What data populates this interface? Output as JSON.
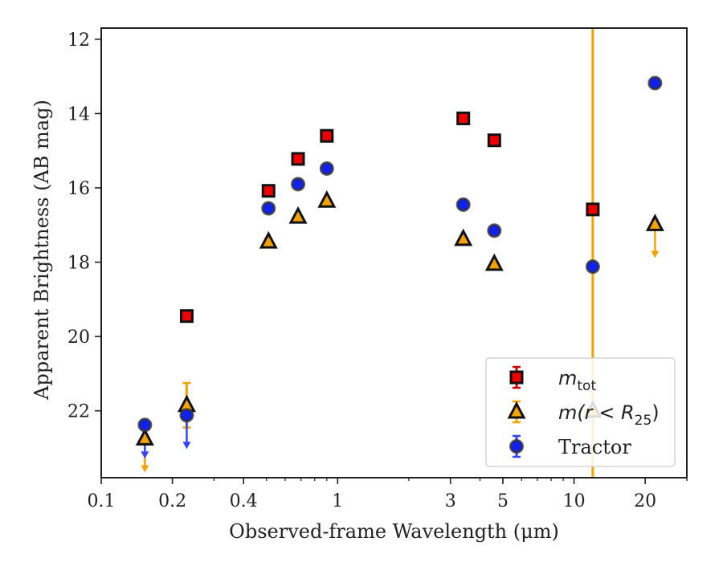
{
  "chart_data": {
    "type": "scatter",
    "xlabel": "Observed-frame Wavelength (μm)",
    "ylabel": "Apparent Brightness (AB mag)",
    "xscale": "log",
    "xlim": [
      0.1,
      30
    ],
    "ylim": [
      23.8,
      11.7
    ],
    "y_inverted": true,
    "xticks": [
      {
        "value": 0.1,
        "label": "0.1"
      },
      {
        "value": 0.2,
        "label": "0.2"
      },
      {
        "value": 0.4,
        "label": "0.4"
      },
      {
        "value": 1,
        "label": "1"
      },
      {
        "value": 3,
        "label": "3"
      },
      {
        "value": 5,
        "label": "5"
      },
      {
        "value": 10,
        "label": "10"
      },
      {
        "value": 20,
        "label": "20"
      }
    ],
    "yticks": [
      {
        "value": 12,
        "label": "12"
      },
      {
        "value": 14,
        "label": "14"
      },
      {
        "value": 16,
        "label": "16"
      },
      {
        "value": 18,
        "label": "18"
      },
      {
        "value": 20,
        "label": "20"
      },
      {
        "value": 22,
        "label": "22"
      }
    ],
    "grid": false,
    "legend_placement": "lower-right",
    "series": [
      {
        "name": "m_tot",
        "legend_label": {
          "main": "m",
          "sub": "tot",
          "suffix": ""
        },
        "marker": "square",
        "color": "#ee0000",
        "error_color": "#cc0000",
        "points": [
          {
            "x": 0.23,
            "y": 19.45
          },
          {
            "x": 0.51,
            "y": 16.08
          },
          {
            "x": 0.68,
            "y": 15.22
          },
          {
            "x": 0.9,
            "y": 14.6
          },
          {
            "x": 3.4,
            "y": 14.13
          },
          {
            "x": 4.6,
            "y": 14.72
          },
          {
            "x": 12.0,
            "y": 16.58
          }
        ]
      },
      {
        "name": "m(r < R25)",
        "legend_label": {
          "main": "m(r < R",
          "sub": "25",
          "suffix": ")"
        },
        "marker": "triangle",
        "color": "#f5a300",
        "error_color": "#f5a300",
        "points": [
          {
            "x": 0.153,
            "y": 22.75,
            "upper_limit": true
          },
          {
            "x": 0.23,
            "y": 21.85,
            "yerr": [
              0.6,
              0.6
            ]
          },
          {
            "x": 0.51,
            "y": 17.45
          },
          {
            "x": 0.68,
            "y": 16.78
          },
          {
            "x": 0.9,
            "y": 16.35
          },
          {
            "x": 3.4,
            "y": 17.38
          },
          {
            "x": 4.6,
            "y": 18.05
          },
          {
            "x": 12.0,
            "y": 22.0,
            "yerr": [
              100,
              100
            ]
          },
          {
            "x": 22.0,
            "y": 16.98,
            "upper_limit": true
          }
        ]
      },
      {
        "name": "Tractor",
        "legend_label": {
          "main": "Tractor",
          "sub": "",
          "suffix": ""
        },
        "marker": "circle",
        "color": "#1020ee",
        "error_color": "#3344ff",
        "points": [
          {
            "x": 0.153,
            "y": 22.38,
            "upper_limit": true
          },
          {
            "x": 0.23,
            "y": 22.12,
            "upper_limit": true
          },
          {
            "x": 0.51,
            "y": 16.55
          },
          {
            "x": 0.68,
            "y": 15.9
          },
          {
            "x": 0.9,
            "y": 15.48
          },
          {
            "x": 3.4,
            "y": 16.45
          },
          {
            "x": 4.6,
            "y": 17.15
          },
          {
            "x": 12.0,
            "y": 18.12
          },
          {
            "x": 22.0,
            "y": 13.18
          }
        ]
      }
    ]
  }
}
